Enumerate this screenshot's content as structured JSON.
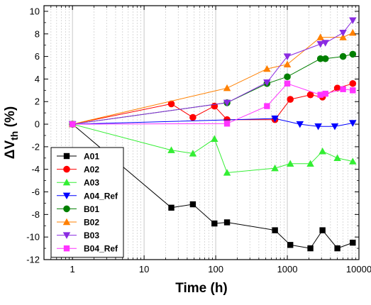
{
  "chart_data": {
    "type": "line",
    "xlabel": "Time (h)",
    "ylabel": "ΔV",
    "ylabel_subscript": "th",
    "ylabel_suffix": " (%)",
    "xscale": "log",
    "xlim": [
      0.4,
      10000
    ],
    "ylim": [
      -12,
      10.5
    ],
    "x_ticks": [
      1,
      10,
      100,
      1000,
      10000
    ],
    "x_tick_labels": [
      "1",
      "10",
      "100",
      "1000",
      "10000"
    ],
    "y_ticks": [
      -12,
      -10,
      -8,
      -6,
      -4,
      -2,
      0,
      2,
      4,
      6,
      8,
      10
    ],
    "y_tick_labels": [
      "-12",
      "-10",
      "-8",
      "-6",
      "-4",
      "-2",
      "0",
      "2",
      "4",
      "6",
      "8",
      "10"
    ],
    "grid": "vertical dotted at minor decades",
    "legend_position": "bottom-left",
    "series": [
      {
        "name": "A01",
        "color": "#000000",
        "marker": "square",
        "x": [
          1,
          24,
          48,
          96,
          144,
          672,
          1100,
          2100,
          3100,
          5000,
          8200
        ],
        "y": [
          0,
          -7.4,
          -7.1,
          -8.8,
          -8.7,
          -9.4,
          -10.7,
          -11.0,
          -9.4,
          -11.0,
          -10.5
        ]
      },
      {
        "name": "A02",
        "color": "#ff0000",
        "marker": "circle",
        "x": [
          1,
          24,
          48,
          96,
          144,
          672,
          1100,
          2100,
          3100,
          5000,
          8200
        ],
        "y": [
          0,
          1.8,
          0.6,
          1.6,
          0.4,
          0.4,
          2.2,
          2.6,
          2.4,
          3.2,
          3.6
        ]
      },
      {
        "name": "A03",
        "color": "#33ee33",
        "marker": "triangle-up",
        "x": [
          1,
          24,
          48,
          96,
          144,
          672,
          1100,
          2100,
          3100,
          5000,
          8200
        ],
        "y": [
          0,
          -2.3,
          -2.6,
          -1.3,
          -4.3,
          -3.9,
          -3.5,
          -3.5,
          -2.4,
          -3.0,
          -3.3
        ]
      },
      {
        "name": "A04_Ref",
        "color": "#0000ff",
        "marker": "triangle-down",
        "x": [
          1,
          672,
          1500,
          2700,
          4600,
          8200
        ],
        "y": [
          0,
          0.5,
          0.0,
          -0.2,
          -0.2,
          0.1
        ]
      },
      {
        "name": "B01",
        "color": "#007f00",
        "marker": "circle",
        "x": [
          1,
          144,
          520,
          1000,
          2900,
          3400,
          6000,
          8200
        ],
        "y": [
          0,
          1.9,
          3.6,
          4.2,
          5.8,
          5.8,
          6.0,
          6.2
        ]
      },
      {
        "name": "B02",
        "color": "#ff8000",
        "marker": "triangle-up",
        "x": [
          1,
          144,
          520,
          1000,
          2900,
          6000,
          8200
        ],
        "y": [
          0,
          3.2,
          4.9,
          5.3,
          7.7,
          7.7,
          8.1
        ]
      },
      {
        "name": "B03",
        "color": "#8a2be2",
        "marker": "triangle-down",
        "x": [
          1,
          144,
          520,
          1000,
          2900,
          3400,
          6000,
          8200
        ],
        "y": [
          0,
          1.9,
          3.7,
          6.0,
          7.1,
          7.2,
          8.1,
          9.2
        ]
      },
      {
        "name": "B04_Ref",
        "color": "#ff33ff",
        "marker": "square",
        "x": [
          1,
          144,
          520,
          1000,
          2900,
          3400,
          6000,
          8200
        ],
        "y": [
          0,
          0.05,
          1.6,
          3.6,
          2.6,
          2.7,
          3.1,
          3.0
        ]
      }
    ]
  }
}
